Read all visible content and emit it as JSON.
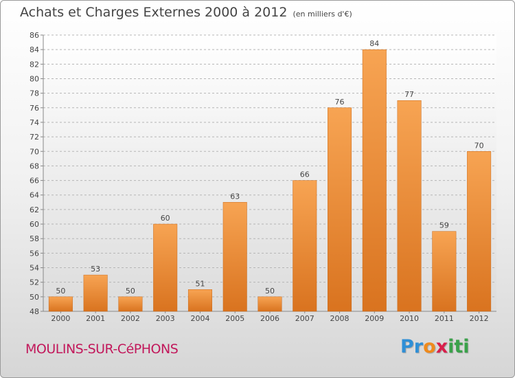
{
  "title": "Achats et Charges Externes 2000 à 2012",
  "subtitle": "(en milliers d'€)",
  "commune": "MOULINS-SUR-CéPHONS",
  "logo": {
    "letters": [
      "P",
      "r",
      "o",
      "x",
      "i",
      "t",
      "i"
    ],
    "colors": [
      "#2f8fd6",
      "#2f8fd6",
      "#ef8a1c",
      "#d81f4a",
      "#3aa14a",
      "#3aa14a",
      "#3aa14a"
    ]
  },
  "colors": {
    "bar_top": "#f7a453",
    "bar_bottom": "#d9731f",
    "grid": "#b5b5b5",
    "commune": "#c2185b"
  },
  "chart_data": {
    "type": "bar",
    "categories": [
      "2000",
      "2001",
      "2002",
      "2003",
      "2004",
      "2005",
      "2006",
      "2007",
      "2008",
      "2009",
      "2010",
      "2011",
      "2012"
    ],
    "values": [
      50,
      53,
      50,
      60,
      51,
      63,
      50,
      66,
      76,
      84,
      77,
      59,
      70
    ],
    "ylim": [
      48,
      86
    ],
    "yticks": [
      48,
      50,
      52,
      54,
      56,
      58,
      60,
      62,
      64,
      66,
      68,
      70,
      72,
      74,
      76,
      78,
      80,
      82,
      84,
      86
    ],
    "grid": true
  }
}
